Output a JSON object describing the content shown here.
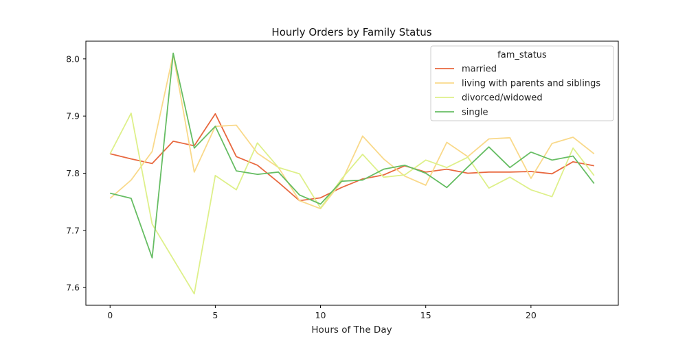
{
  "chart_data": {
    "type": "line",
    "title": "Hourly Orders by Family Status",
    "xlabel": "Hours of The Day",
    "ylabel": "",
    "xlim": [
      -1.15,
      24.15
    ],
    "ylim": [
      7.569,
      8.031
    ],
    "xticks": [
      0,
      5,
      10,
      15,
      20
    ],
    "yticks": [
      7.6,
      7.7,
      7.8,
      7.9,
      8.0
    ],
    "xtick_labels": [
      "0",
      "5",
      "10",
      "15",
      "20"
    ],
    "ytick_labels": [
      "7.6",
      "7.7",
      "7.8",
      "7.9",
      "8.0"
    ],
    "grid": false,
    "legend": {
      "title": "fam_status",
      "position": "top-right"
    },
    "x": [
      0,
      1,
      2,
      3,
      4,
      5,
      6,
      7,
      8,
      9,
      10,
      11,
      12,
      13,
      14,
      15,
      16,
      17,
      18,
      19,
      20,
      21,
      22,
      23
    ],
    "series": [
      {
        "name": "married",
        "color": "#e8683f",
        "values": [
          7.834,
          7.825,
          7.817,
          7.856,
          7.848,
          7.904,
          7.829,
          7.814,
          7.784,
          7.752,
          7.757,
          7.775,
          7.79,
          7.797,
          7.813,
          7.802,
          7.807,
          7.8,
          7.802,
          7.802,
          7.803,
          7.799,
          7.82,
          7.813
        ]
      },
      {
        "name": "living with parents and siblings",
        "color": "#f9d98a",
        "values": [
          7.756,
          7.788,
          7.838,
          8.008,
          7.802,
          7.882,
          7.884,
          7.835,
          7.81,
          7.752,
          7.738,
          7.785,
          7.865,
          7.825,
          7.795,
          7.779,
          7.854,
          7.829,
          7.86,
          7.862,
          7.791,
          7.852,
          7.863,
          7.834
        ]
      },
      {
        "name": "divorced/widowed",
        "color": "#def08a",
        "values": [
          7.834,
          7.905,
          7.711,
          7.65,
          7.589,
          7.796,
          7.771,
          7.853,
          7.81,
          7.799,
          7.739,
          7.79,
          7.833,
          7.793,
          7.797,
          7.823,
          7.81,
          7.828,
          7.774,
          7.793,
          7.771,
          7.759,
          7.844,
          7.796
        ]
      },
      {
        "name": "single",
        "color": "#66bd63",
        "values": [
          7.765,
          7.756,
          7.652,
          8.01,
          7.844,
          7.882,
          7.804,
          7.798,
          7.802,
          7.762,
          7.746,
          7.786,
          7.788,
          7.807,
          7.814,
          7.8,
          7.775,
          7.811,
          7.846,
          7.81,
          7.837,
          7.823,
          7.83,
          7.782
        ]
      }
    ]
  }
}
